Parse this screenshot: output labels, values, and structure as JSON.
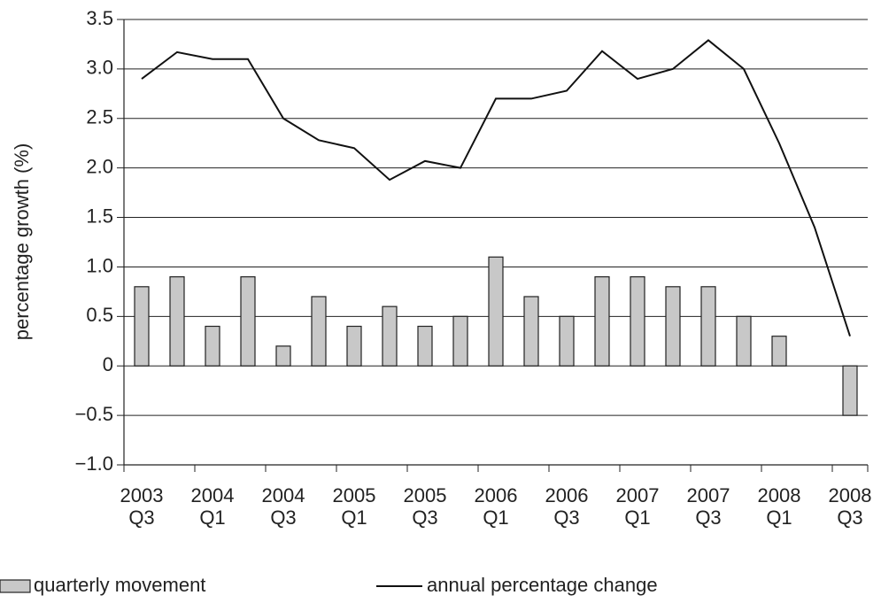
{
  "chart_data": {
    "type": "bar-line",
    "y_label": "percentage growth (%)",
    "categories": [
      "2003\nQ3",
      null,
      "2004\nQ1",
      null,
      "2004\nQ3",
      null,
      "2005\nQ1",
      null,
      "2005\nQ3",
      null,
      "2006\nQ1",
      null,
      "2006\nQ3",
      null,
      "2007\nQ1",
      null,
      "2007\nQ3",
      null,
      "2008\nQ1",
      null,
      "2008\nQ3"
    ],
    "series": [
      {
        "name": "quarterly movement",
        "type": "bar",
        "color": "#c8c8c8",
        "values": [
          0.8,
          0.9,
          0.4,
          0.9,
          0.2,
          0.7,
          0.4,
          0.6,
          0.4,
          0.5,
          1.1,
          0.7,
          0.5,
          0.9,
          0.9,
          0.8,
          0.8,
          0.5,
          0.3,
          null,
          -0.5
        ]
      },
      {
        "name": "annual percentage change",
        "type": "line",
        "color": "#111111",
        "values": [
          2.9,
          3.17,
          3.1,
          3.1,
          2.5,
          2.28,
          2.2,
          1.88,
          2.07,
          2.0,
          2.7,
          2.7,
          2.78,
          3.18,
          2.9,
          3.0,
          3.29,
          3.0,
          2.25,
          1.4,
          0.3
        ]
      }
    ],
    "ylim": [
      -1.0,
      3.5
    ],
    "yticks": [
      {
        "value": -1.0,
        "label": "−1.0"
      },
      {
        "value": -0.5,
        "label": "−0.5"
      },
      0,
      0.5,
      {
        "value": 1.0,
        "label": "1.0"
      },
      1.5,
      {
        "value": 2.0,
        "label": "2.0"
      },
      2.5,
      {
        "value": 3.0,
        "label": "3.0"
      },
      3.5
    ],
    "grid": true
  }
}
